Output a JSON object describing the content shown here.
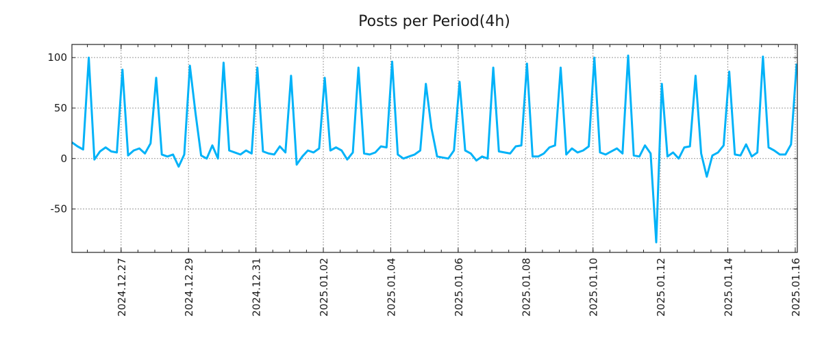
{
  "chart_data": {
    "type": "line",
    "title": "Posts per Period(4h)",
    "xlabel": "",
    "ylabel": "",
    "start": "2024-12-25 13:00",
    "interval_hours": 4,
    "ylim": [
      -93,
      113
    ],
    "yticks": [
      -50,
      0,
      50,
      100
    ],
    "xticks": [
      {
        "label": "2024.12.27",
        "index": 8.75
      },
      {
        "label": "2024.12.29",
        "index": 20.75
      },
      {
        "label": "2024.12.31",
        "index": 32.75
      },
      {
        "label": "2025.01.02",
        "index": 44.75
      },
      {
        "label": "2025.01.04",
        "index": 56.75
      },
      {
        "label": "2025.01.06",
        "index": 68.75
      },
      {
        "label": "2025.01.08",
        "index": 80.75
      },
      {
        "label": "2025.01.10",
        "index": 92.75
      },
      {
        "label": "2025.01.12",
        "index": 104.75
      },
      {
        "label": "2025.01.14",
        "index": 116.75
      },
      {
        "label": "2025.01.16",
        "index": 128.75
      }
    ],
    "grid": true,
    "color": "#00b2f8",
    "values": [
      16,
      12,
      9,
      100,
      -1,
      7,
      11,
      7,
      6,
      88,
      3,
      8,
      10,
      5,
      15,
      80,
      4,
      2,
      4,
      -8,
      4,
      92,
      45,
      3,
      0,
      13,
      0,
      95,
      8,
      6,
      4,
      8,
      5,
      90,
      7,
      5,
      4,
      12,
      6,
      82,
      -6,
      2,
      8,
      6,
      10,
      80,
      8,
      11,
      8,
      -1,
      6,
      90,
      5,
      4,
      6,
      12,
      11,
      96,
      4,
      0,
      2,
      4,
      8,
      74,
      30,
      2,
      1,
      0,
      8,
      76,
      8,
      5,
      -2,
      2,
      0,
      90,
      7,
      6,
      5,
      12,
      13,
      94,
      2,
      2,
      5,
      11,
      13,
      90,
      4,
      10,
      6,
      8,
      12,
      100,
      6,
      4,
      7,
      10,
      5,
      102,
      3,
      2,
      13,
      5,
      -83,
      74,
      2,
      6,
      0,
      11,
      12,
      82,
      5,
      -18,
      3,
      6,
      13,
      86,
      4,
      3,
      14,
      2,
      6,
      101,
      11,
      8,
      4,
      4,
      14,
      94
    ]
  }
}
